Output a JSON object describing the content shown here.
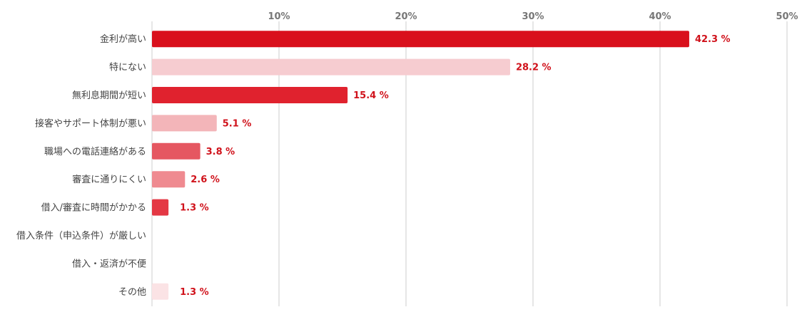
{
  "chart_data": {
    "type": "bar",
    "orientation": "horizontal",
    "categories": [
      "金利が高い",
      "特にない",
      "無利息期間が短い",
      "接客やサポート体制が悪い",
      "職場への電話連絡がある",
      "審査に通りにくい",
      "借入/審査に時間がかかる",
      "借入条件（申込条件）が厳しい",
      "借入・返済が不便",
      "その他"
    ],
    "values": [
      42.3,
      28.2,
      15.4,
      5.1,
      3.8,
      2.6,
      1.3,
      0,
      0,
      1.3
    ],
    "value_labels": [
      "42.3 %",
      "28.2 %",
      "15.4 %",
      "5.1 %",
      "3.8 %",
      "2.6 %",
      "1.3 %",
      "",
      "",
      "1.3 %"
    ],
    "colors": [
      "#d9101c",
      "#f6ccd0",
      "#e0222e",
      "#f3b5b9",
      "#e55761",
      "#ef8a90",
      "#e43844",
      "#ffffff",
      "#ffffff",
      "#fbe3e5"
    ],
    "xlim": [
      0,
      50
    ],
    "x_ticks": [
      10,
      20,
      30,
      40,
      50
    ],
    "x_tick_labels": [
      "10%",
      "20%",
      "30%",
      "40%",
      "50%"
    ],
    "grid": true,
    "title": "",
    "xlabel": "",
    "ylabel": ""
  }
}
